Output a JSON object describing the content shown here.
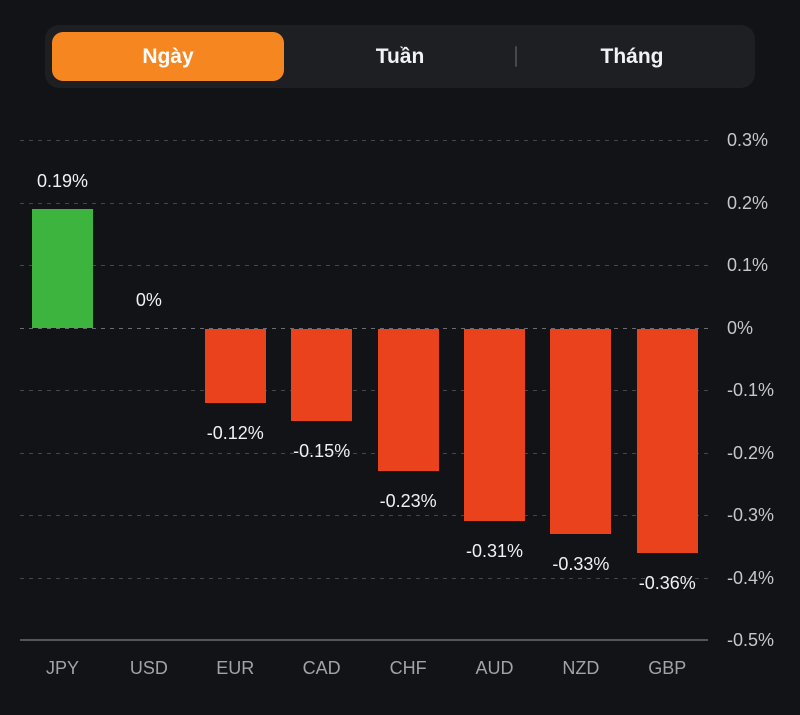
{
  "tabs": {
    "items": [
      {
        "label": "Ngày",
        "selected": true
      },
      {
        "label": "Tuần",
        "selected": false
      },
      {
        "label": "Tháng",
        "selected": false
      }
    ],
    "active_color": "#f6861f"
  },
  "chart_data": {
    "type": "bar",
    "title": "",
    "xlabel": "",
    "ylabel": "",
    "categories": [
      "JPY",
      "USD",
      "EUR",
      "CAD",
      "CHF",
      "AUD",
      "NZD",
      "GBP"
    ],
    "values": [
      0.19,
      0,
      -0.12,
      -0.15,
      -0.23,
      -0.31,
      -0.33,
      -0.36
    ],
    "value_labels": [
      "0.19%",
      "0%",
      "-0.12%",
      "-0.15%",
      "-0.23%",
      "-0.31%",
      "-0.33%",
      "-0.36%"
    ],
    "unit": "%",
    "ylim": [
      -0.5,
      0.3
    ],
    "y_ticks": [
      0.3,
      0.2,
      0.1,
      0,
      -0.1,
      -0.2,
      -0.3,
      -0.4,
      -0.5
    ],
    "y_tick_labels": [
      "0.3%",
      "0.2%",
      "0.1%",
      "0%",
      "-0.1%",
      "-0.2%",
      "-0.3%",
      "-0.4%",
      "-0.5%"
    ],
    "axis_side": "right",
    "grid": "horizontal-dashed",
    "positive_color": "#3cb43e",
    "negative_color": "#e9421d",
    "background_color": "#121316"
  }
}
